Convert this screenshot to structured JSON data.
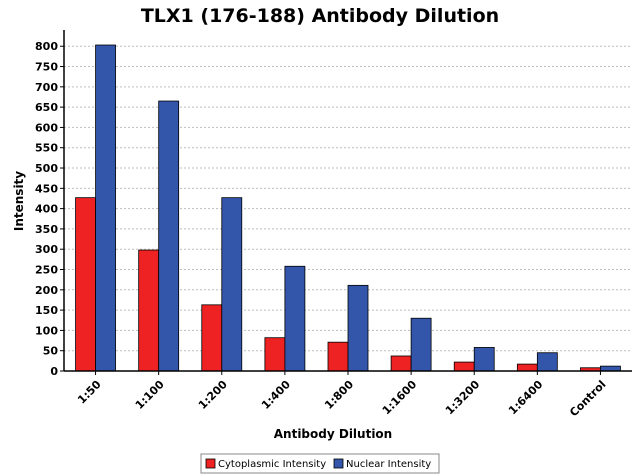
{
  "chart_data": {
    "type": "bar",
    "title": "TLX1 (176-188) Antibody Dilution",
    "xlabel": "Antibody Dilution",
    "ylabel": "Intensity",
    "ylim": [
      0,
      840
    ],
    "yticks": [
      0,
      50,
      100,
      150,
      200,
      250,
      300,
      350,
      400,
      450,
      500,
      550,
      600,
      650,
      700,
      750,
      800
    ],
    "grid": true,
    "legend_position": "bottom",
    "categories": [
      "1:50",
      "1:100",
      "1:200",
      "1:400",
      "1:800",
      "1:1600",
      "1:3200",
      "1:6400",
      "Control"
    ],
    "series": [
      {
        "name": "Cytoplasmic Intensity",
        "color": "#ee2222",
        "values": [
          427,
          298,
          163,
          82,
          71,
          37,
          22,
          17,
          8
        ]
      },
      {
        "name": "Nuclear Intensity",
        "color": "#3355aa",
        "values": [
          803,
          665,
          427,
          258,
          211,
          130,
          58,
          45,
          12
        ]
      }
    ]
  }
}
